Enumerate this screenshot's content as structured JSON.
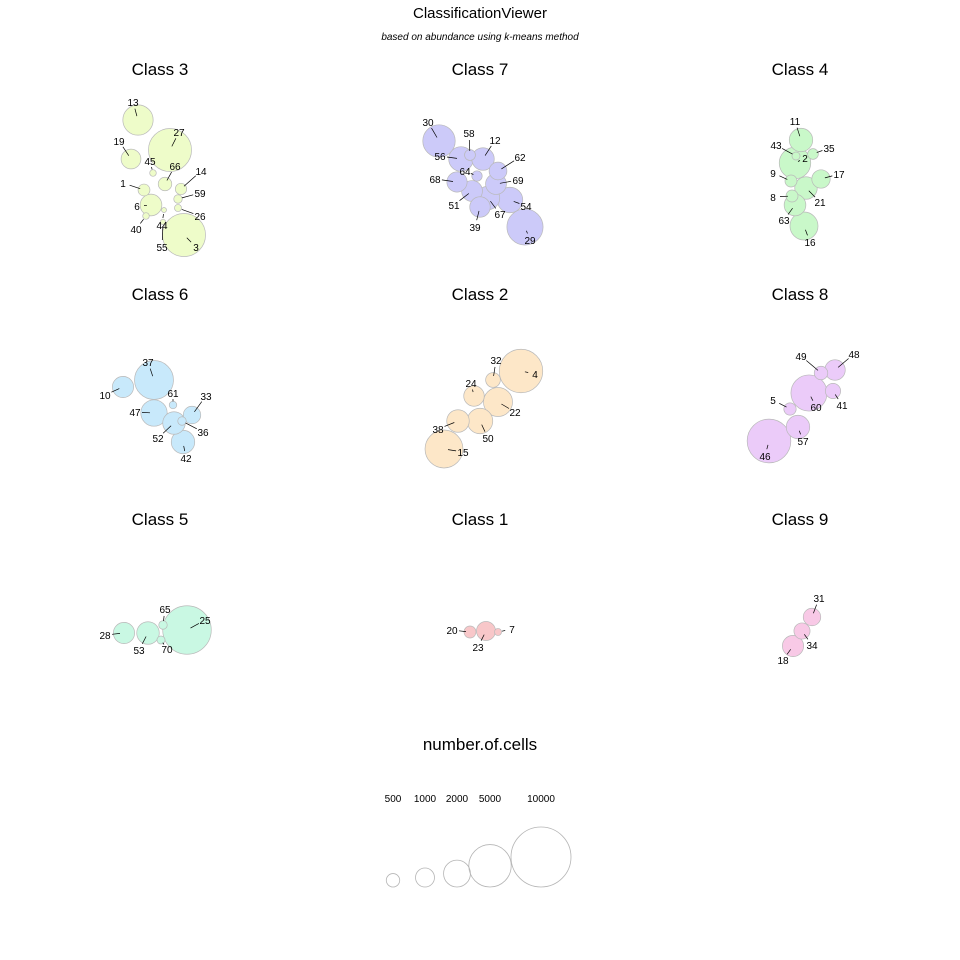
{
  "chart_data": {
    "type": "bubble-panels",
    "title": "ClassificationViewer",
    "subtitle": "based on abundance using k-means method",
    "size_variable": "number.of.cells",
    "legend": {
      "title": "number.of.cells",
      "sizes": [
        500,
        1000,
        2000,
        5000,
        10000
      ],
      "labels": [
        "500",
        "1000",
        "2000",
        "5000",
        "10000"
      ]
    },
    "panels": [
      {
        "title": "Class 3",
        "color": "#eefcc9",
        "clusters": [
          {
            "id": "13",
            "cells": 2550
          },
          {
            "id": "27",
            "cells": 5150
          },
          {
            "id": "19",
            "cells": 1090
          },
          {
            "id": "45",
            "cells": 120
          },
          {
            "id": "66",
            "cells": 510
          },
          {
            "id": "14",
            "cells": 360
          },
          {
            "id": "1",
            "cells": 390
          },
          {
            "id": "59",
            "cells": 200
          },
          {
            "id": "6",
            "cells": 1310
          },
          {
            "id": "26",
            "cells": 140
          },
          {
            "id": "40",
            "cells": 120
          },
          {
            "id": "44",
            "cells": 70
          },
          {
            "id": "55",
            "cells": 80
          },
          {
            "id": "3",
            "cells": 5150
          }
        ]
      },
      {
        "title": "Class 7",
        "color": "#cccaf9",
        "clusters": [
          {
            "id": "30",
            "cells": 2920
          },
          {
            "id": "58",
            "cells": 330
          },
          {
            "id": "12",
            "cells": 1410
          },
          {
            "id": "56",
            "cells": 1680
          },
          {
            "id": "62",
            "cells": 880
          },
          {
            "id": "64",
            "cells": 300
          },
          {
            "id": "69",
            "cells": 1210
          },
          {
            "id": "68",
            "cells": 1140
          },
          {
            "id": "51",
            "cells": 1210
          },
          {
            "id": "54",
            "cells": 1810
          },
          {
            "id": "67",
            "cells": 1530
          },
          {
            "id": "39",
            "cells": 1170
          },
          {
            "id": "29",
            "cells": 3630
          }
        ]
      },
      {
        "title": "Class 4",
        "color": "#c9f8c9",
        "clusters": [
          {
            "id": "11",
            "cells": 1530
          },
          {
            "id": "43",
            "cells": 180
          },
          {
            "id": "35",
            "cells": 320
          },
          {
            "id": "2",
            "cells": 2760
          },
          {
            "id": "9",
            "cells": 400
          },
          {
            "id": "17",
            "cells": 940
          },
          {
            "id": "8",
            "cells": 400
          },
          {
            "id": "21",
            "cells": 1410
          },
          {
            "id": "63",
            "cells": 1310
          },
          {
            "id": "16",
            "cells": 2180
          }
        ]
      },
      {
        "title": "Class 6",
        "color": "#c8e9fb",
        "clusters": [
          {
            "id": "37",
            "cells": 4210
          },
          {
            "id": "10",
            "cells": 1250
          },
          {
            "id": "61",
            "cells": 160
          },
          {
            "id": "33",
            "cells": 850
          },
          {
            "id": "47",
            "cells": 1930
          },
          {
            "id": "36",
            "cells": 200
          },
          {
            "id": "52",
            "cells": 1410
          },
          {
            "id": "42",
            "cells": 1530
          }
        ]
      },
      {
        "title": "Class 2",
        "color": "#fde7c8",
        "clusters": [
          {
            "id": "32",
            "cells": 600
          },
          {
            "id": "4",
            "cells": 5250
          },
          {
            "id": "24",
            "cells": 1170
          },
          {
            "id": "22",
            "cells": 2340
          },
          {
            "id": "38",
            "cells": 1410
          },
          {
            "id": "50",
            "cells": 1810
          },
          {
            "id": "15",
            "cells": 4000
          }
        ]
      },
      {
        "title": "Class 8",
        "color": "#ebcbf9",
        "clusters": [
          {
            "id": "49",
            "cells": 510
          },
          {
            "id": "48",
            "cells": 1170
          },
          {
            "id": "5",
            "cells": 420
          },
          {
            "id": "60",
            "cells": 3630
          },
          {
            "id": "41",
            "cells": 650
          },
          {
            "id": "57",
            "cells": 1530
          },
          {
            "id": "46",
            "cells": 5300
          }
        ]
      },
      {
        "title": "Class 5",
        "color": "#c9f8e3",
        "clusters": [
          {
            "id": "65",
            "cells": 200
          },
          {
            "id": "25",
            "cells": 6550
          },
          {
            "id": "28",
            "cells": 1250
          },
          {
            "id": "53",
            "cells": 1410
          },
          {
            "id": "70",
            "cells": 180
          }
        ]
      },
      {
        "title": "Class 1",
        "color": "#f8c7c9",
        "clusters": [
          {
            "id": "20",
            "cells": 400
          },
          {
            "id": "7",
            "cells": 140
          },
          {
            "id": "23",
            "cells": 1010
          }
        ]
      },
      {
        "title": "Class 9",
        "color": "#f8c9e6",
        "clusters": [
          {
            "id": "31",
            "cells": 850
          },
          {
            "id": "34",
            "cells": 720
          },
          {
            "id": "18",
            "cells": 1250
          }
        ]
      }
    ]
  }
}
